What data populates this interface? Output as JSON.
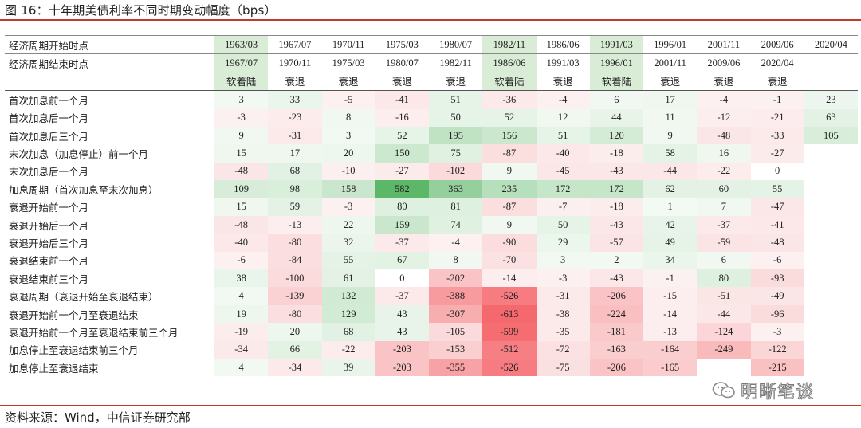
{
  "title": "图 16：十年期美债利率不同时期变动幅度（bps）",
  "source": "资料来源：Wind，中信证券研究部",
  "watermark": "明晰笔谈",
  "header": {
    "start_label": "经济周期开始时点",
    "end_label": "经济周期结束时点",
    "starts": [
      "1963/03",
      "1967/07",
      "1970/11",
      "1975/03",
      "1980/07",
      "1982/11",
      "1986/06",
      "1991/03",
      "1996/01",
      "2001/11",
      "2009/06",
      "2020/04"
    ],
    "ends": [
      "1967/07",
      "1970/11",
      "1975/03",
      "1980/07",
      "1982/11",
      "1986/06",
      "1991/03",
      "1996/01",
      "2001/11",
      "2009/06",
      "2020/04",
      ""
    ],
    "phases": [
      "软着陆",
      "衰退",
      "衰退",
      "衰退",
      "衰退",
      "软着陆",
      "衰退",
      "软着陆",
      "衰退",
      "衰退",
      "衰退",
      ""
    ],
    "soft_landing_color": "#d8ecd6"
  },
  "rows": [
    {
      "label": "首次加息前一个月",
      "values": [
        "3",
        "33",
        "-5",
        "-41",
        "51",
        "-36",
        "-4",
        "6",
        "17",
        "-4",
        "-1",
        "23"
      ]
    },
    {
      "label": "首次加息后一个月",
      "values": [
        "-3",
        "-23",
        "8",
        "-16",
        "50",
        "52",
        "12",
        "44",
        "11",
        "-12",
        "-21",
        "63"
      ]
    },
    {
      "label": "首次加息后三个月",
      "values": [
        "9",
        "-31",
        "3",
        "52",
        "195",
        "156",
        "51",
        "120",
        "9",
        "-48",
        "-33",
        "105"
      ]
    },
    {
      "label": "末次加息（加息停止）前一个月",
      "values": [
        "15",
        "17",
        "20",
        "150",
        "75",
        "-87",
        "-40",
        "-18",
        "58",
        "16",
        "-27",
        ""
      ]
    },
    {
      "label": "末次加息后一个月",
      "values": [
        "-48",
        "68",
        "-10",
        "-27",
        "-102",
        "9",
        "-45",
        "-43",
        "-44",
        "-22",
        "0",
        ""
      ]
    },
    {
      "label": "加息周期（首次加息至末次加息）",
      "values": [
        "109",
        "98",
        "158",
        "582",
        "363",
        "235",
        "172",
        "172",
        "62",
        "60",
        "55",
        ""
      ]
    },
    {
      "label": "衰退开始前一个月",
      "values": [
        "15",
        "59",
        "-3",
        "80",
        "81",
        "-87",
        "-7",
        "-18",
        "1",
        "7",
        "-47",
        ""
      ]
    },
    {
      "label": "衰退开始后一个月",
      "values": [
        "-48",
        "-13",
        "22",
        "159",
        "74",
        "9",
        "50",
        "-43",
        "42",
        "-37",
        "-41",
        ""
      ]
    },
    {
      "label": "衰退开始后三个月",
      "values": [
        "-40",
        "-80",
        "32",
        "-37",
        "-4",
        "-90",
        "29",
        "-57",
        "49",
        "-59",
        "-48",
        ""
      ]
    },
    {
      "label": "衰退结束前一个月",
      "values": [
        "-6",
        "-84",
        "55",
        "67",
        "8",
        "-70",
        "3",
        "2",
        "34",
        "6",
        "-6",
        ""
      ]
    },
    {
      "label": "衰退结束前三个月",
      "values": [
        "38",
        "-100",
        "61",
        "0",
        "-202",
        "-14",
        "-3",
        "-43",
        "-1",
        "80",
        "-93",
        ""
      ]
    },
    {
      "label": "衰退周期（衰退开始至衰退结束）",
      "values": [
        "4",
        "-139",
        "132",
        "-37",
        "-388",
        "-526",
        "-31",
        "-206",
        "-15",
        "-51",
        "-49",
        ""
      ]
    },
    {
      "label": "衰退开始前一个月至衰退结束",
      "values": [
        "19",
        "-80",
        "129",
        "43",
        "-307",
        "-613",
        "-38",
        "-224",
        "-14",
        "-44",
        "-96",
        ""
      ]
    },
    {
      "label": "衰退开始前一个月至衰退结束前三个月",
      "values": [
        "-19",
        "20",
        "68",
        "43",
        "-105",
        "-599",
        "-35",
        "-181",
        "-13",
        "-124",
        "-3",
        ""
      ]
    },
    {
      "label": "加息停止至衰退结束前三个月",
      "values": [
        "-34",
        "66",
        "-22",
        "-203",
        "-153",
        "-512",
        "-72",
        "-163",
        "-164",
        "-249",
        "-122",
        ""
      ]
    },
    {
      "label": "加息停止至衰退结束",
      "values": [
        "4",
        "-34",
        "39",
        "-203",
        "-355",
        "-526",
        "-75",
        "-206",
        "-165",
        "",
        "-215",
        ""
      ]
    }
  ]
}
